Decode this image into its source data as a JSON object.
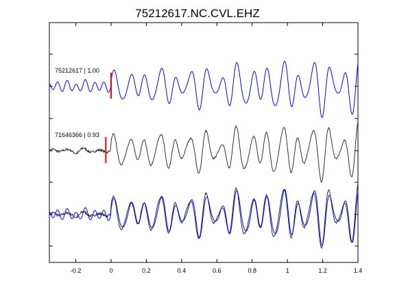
{
  "chart_data": {
    "type": "line",
    "title": "75212617.NC.CVL.EHZ",
    "xlabel": "",
    "ylabel": "",
    "xlim": [
      -0.35,
      1.4
    ],
    "x_ticks": [
      -0.2,
      0,
      0.2,
      0.4,
      0.6,
      0.8,
      1,
      1.2,
      1.4
    ],
    "x_tick_labels": [
      "-0.2",
      "0",
      "0.2",
      "0.4",
      "0.6",
      "0.8",
      "1",
      "1.2",
      "1.4"
    ],
    "grid": false,
    "traces": [
      {
        "label": "75212617 | 1.00",
        "color": "#0000ff",
        "pick_time": 0.0,
        "pick_color": "#ff0000"
      },
      {
        "label": "71646366 | 0.93",
        "color": "#303030",
        "pick_time": -0.03,
        "pick_color": "#ff0000"
      }
    ],
    "overlay": {
      "colors": [
        "#303030",
        "#0000ff"
      ]
    }
  }
}
